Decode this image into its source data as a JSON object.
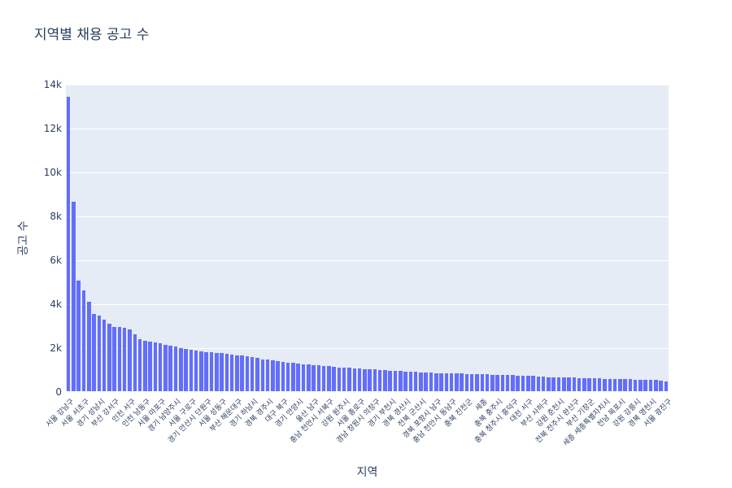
{
  "chart_data": {
    "type": "bar",
    "title": "지역별 채용 공고 수",
    "xlabel": "지역",
    "ylabel": "공고 수",
    "bar_color": "#636EFA",
    "plot_bg": "#E5ECF6",
    "grid_color": "#FFFFFF",
    "font_color": "#2a3f5f",
    "grid": true,
    "legend": "none",
    "ylim": [
      0,
      14000
    ],
    "ytick_values": [
      0,
      2000,
      4000,
      6000,
      8000,
      10000,
      12000,
      14000
    ],
    "ytick_labels": [
      "0",
      "2k",
      "4k",
      "6k",
      "8k",
      "10k",
      "12k",
      "14k"
    ],
    "tick_label_every": 3,
    "tick_labels": [
      "서울 강남구",
      "서울 서초구",
      "경기 성남시",
      "부산 강서구",
      "인천 서구",
      "인천 남동구",
      "서울 마포구",
      "경기 남양주시",
      "서울 구로구",
      "경기 안산시 단원구",
      "서울 성동구",
      "부산 해운대구",
      "경기 하남시",
      "경북 경주시",
      "대구 북구",
      "경기 안양시",
      "울산 남구",
      "충남 천안시 서북구",
      "강원 원주시",
      "서울 종로구",
      "경남 창원시 의창구",
      "경기 부천시",
      "경북 경산시",
      "전북 군산시",
      "경북 포항시 남구",
      "충남 천안시 동남구",
      "충북 진천군",
      "세종",
      "충북 충주시",
      "충북 청주시 흥덕구",
      "대전 서구",
      "부산 사하구",
      "강원 춘천시",
      "전북 전주시 완산구",
      "부산 기장군",
      "세종 세종특별자치시",
      "전남 목포시",
      "강원 강릉시",
      "경북 영천시",
      "서울 광진구"
    ],
    "values": [
      13440,
      8650,
      5060,
      4640,
      4110,
      3570,
      3480,
      3280,
      3100,
      2980,
      2950,
      2910,
      2850,
      2640,
      2390,
      2340,
      2300,
      2260,
      2210,
      2160,
      2110,
      2060,
      2010,
      1970,
      1930,
      1890,
      1860,
      1830,
      1800,
      1780,
      1760,
      1730,
      1710,
      1680,
      1660,
      1620,
      1580,
      1540,
      1500,
      1470,
      1440,
      1410,
      1380,
      1350,
      1320,
      1290,
      1270,
      1250,
      1230,
      1210,
      1190,
      1170,
      1150,
      1130,
      1115,
      1100,
      1085,
      1070,
      1055,
      1040,
      1025,
      1010,
      995,
      980,
      965,
      950,
      940,
      930,
      915,
      900,
      890,
      880,
      870,
      860,
      855,
      850,
      845,
      840,
      830,
      825,
      815,
      805,
      800,
      790,
      785,
      775,
      770,
      765,
      755,
      750,
      745,
      735,
      700,
      690,
      680,
      675,
      670,
      660,
      655,
      650,
      645,
      640,
      630,
      625,
      620,
      610,
      605,
      600,
      590,
      585,
      580,
      570,
      565,
      560,
      550,
      540,
      520,
      500
    ]
  }
}
